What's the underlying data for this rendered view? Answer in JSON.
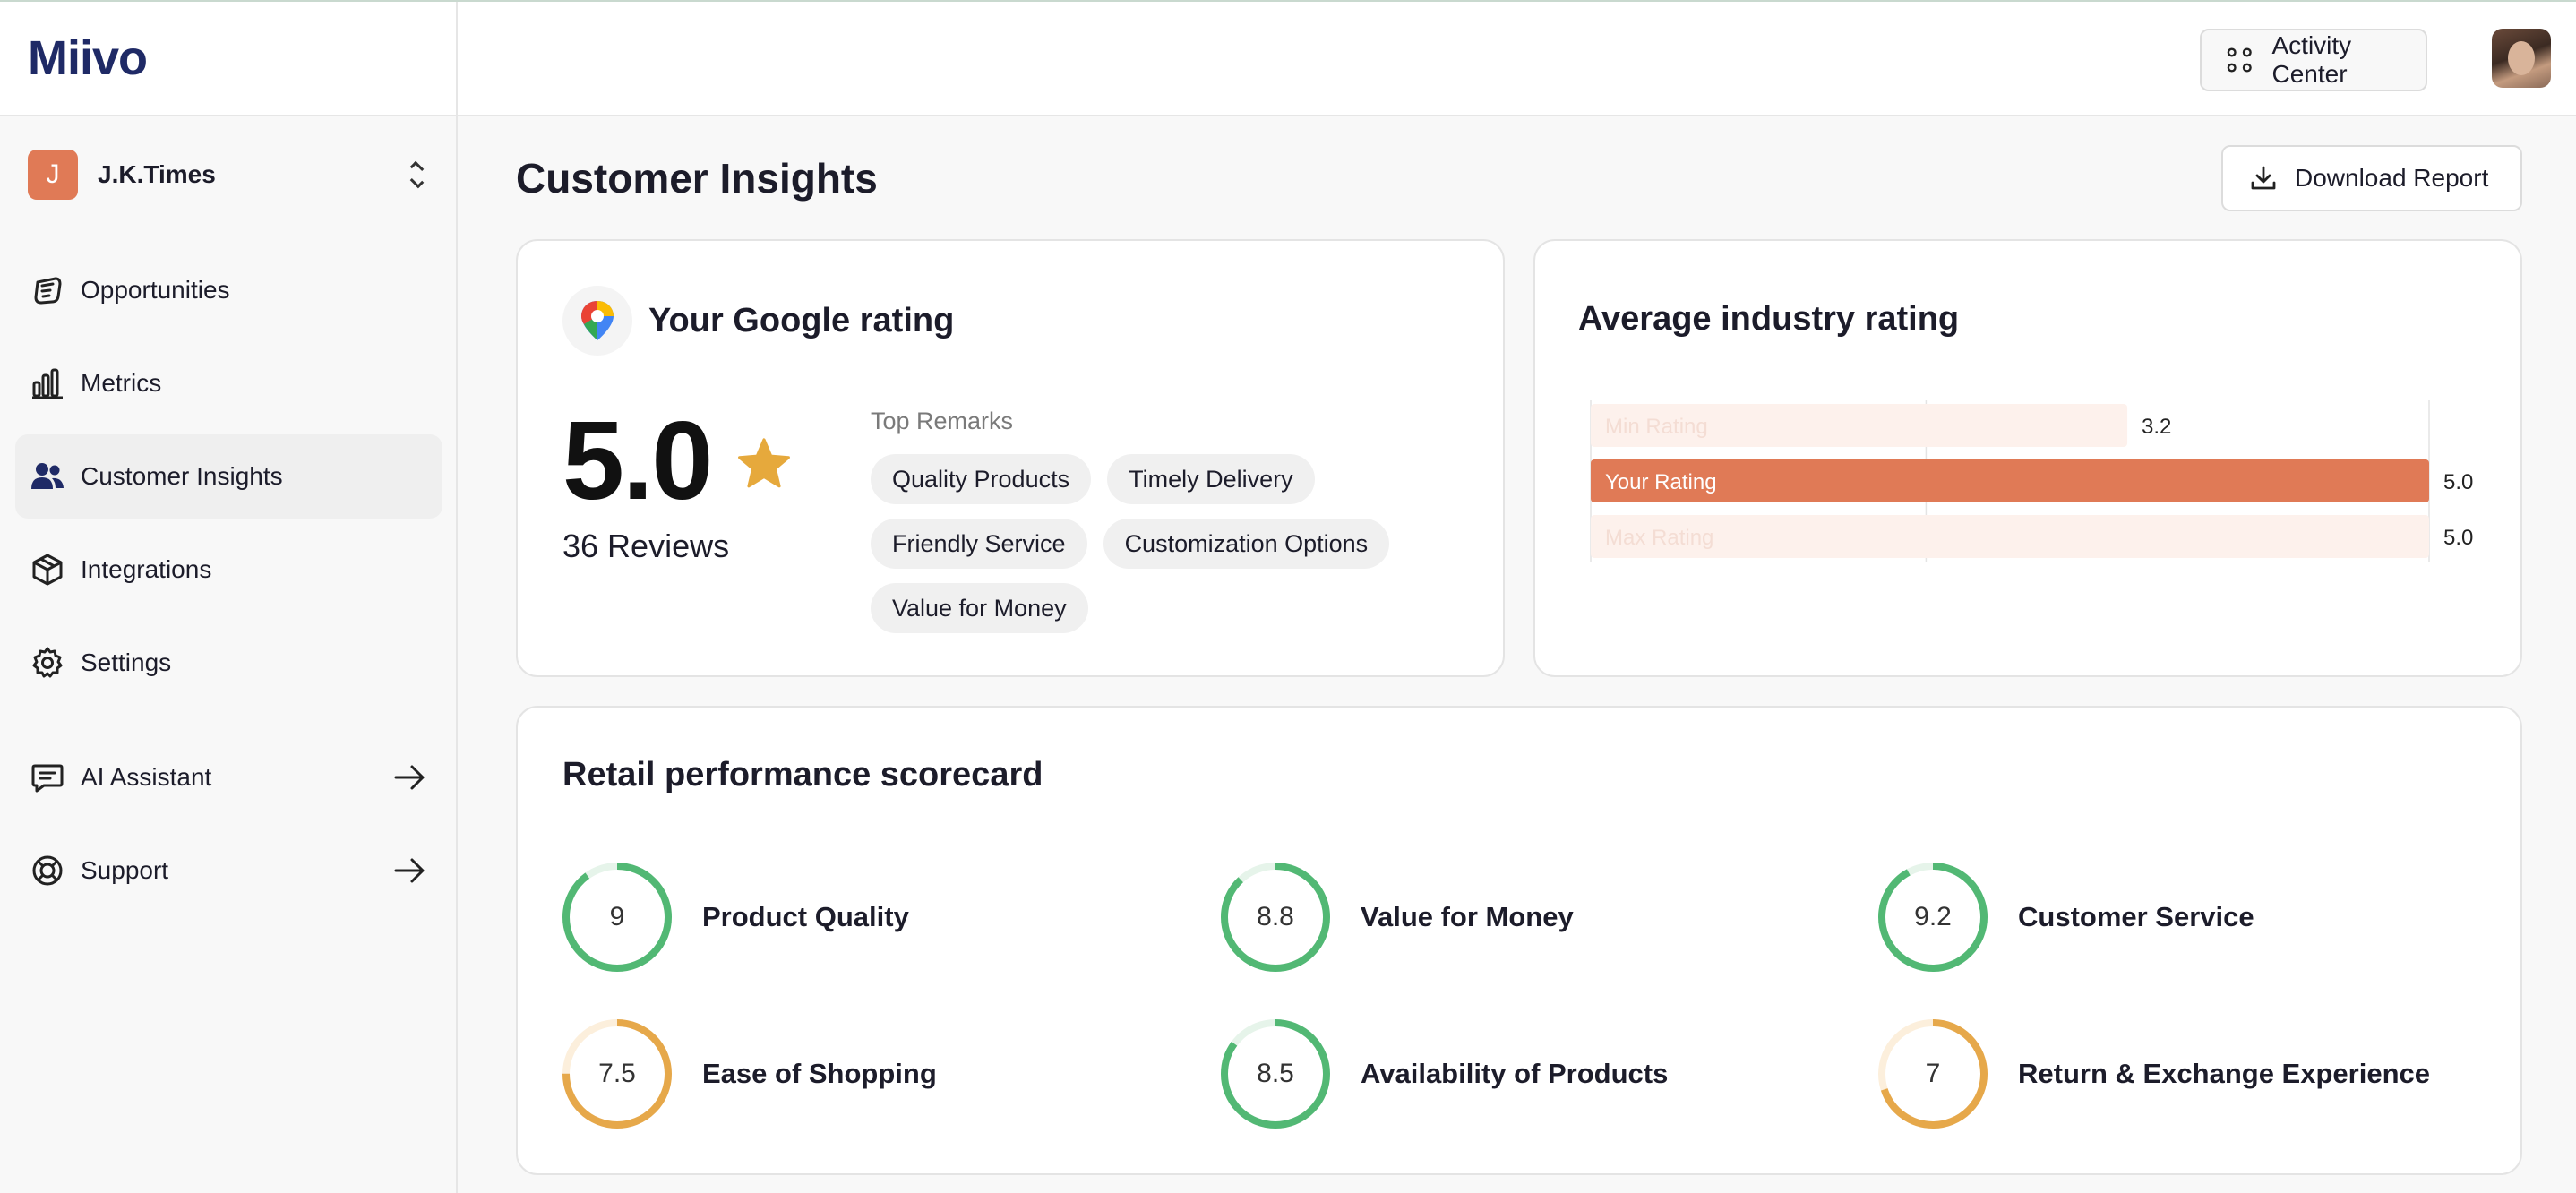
{
  "app": {
    "logo_text": "Miivo"
  },
  "workspace": {
    "initial": "J",
    "name": "J.K.Times"
  },
  "sidebar": {
    "items": [
      {
        "label": "Opportunities",
        "icon": "opportunities-icon"
      },
      {
        "label": "Metrics",
        "icon": "metrics-bar-icon"
      },
      {
        "label": "Customer Insights",
        "icon": "users-icon",
        "active": true
      },
      {
        "label": "Integrations",
        "icon": "package-icon"
      },
      {
        "label": "Settings",
        "icon": "gear-icon"
      }
    ],
    "secondary": [
      {
        "label": "AI Assistant",
        "icon": "chat-icon"
      },
      {
        "label": "Support",
        "icon": "lifebuoy-icon"
      }
    ]
  },
  "header": {
    "activity_label": "Activity Center"
  },
  "page": {
    "title": "Customer Insights",
    "download_label": "Download Report"
  },
  "google": {
    "title": "Your Google rating",
    "rating": "5.0",
    "reviews": "36 Reviews",
    "remarks_title": "Top Remarks",
    "remarks": [
      "Quality Products",
      "Timely Delivery",
      "Friendly Service",
      "Customization Options",
      "Value for Money"
    ]
  },
  "industry": {
    "title": "Average industry rating"
  },
  "chart_data": {
    "type": "bar",
    "orientation": "horizontal",
    "title": "Average industry rating",
    "categories": [
      "Min Rating",
      "Your Rating",
      "Max Rating"
    ],
    "values": [
      3.2,
      5.0,
      5.0
    ],
    "value_labels": [
      "3.2",
      "5.0",
      "5.0"
    ],
    "xlim": [
      0,
      5
    ],
    "colors": {
      "highlight": "#e07a56",
      "muted": "#fdf1ec",
      "grid": "#e4e4e4"
    },
    "grid": true,
    "legend": "none"
  },
  "scorecard": {
    "title": "Retail performance scorecard",
    "metrics": [
      {
        "label": "Product Quality",
        "value": "9",
        "score": 9,
        "color": "#52b874"
      },
      {
        "label": "Value for Money",
        "value": "8.8",
        "score": 8.8,
        "color": "#52b874"
      },
      {
        "label": "Customer Service",
        "value": "9.2",
        "score": 9.2,
        "color": "#52b874"
      },
      {
        "label": "Ease of Shopping",
        "value": "7.5",
        "score": 7.5,
        "color": "#e6a84a"
      },
      {
        "label": "Availability of Products",
        "value": "8.5",
        "score": 8.5,
        "color": "#52b874"
      },
      {
        "label": "Return & Exchange Experience",
        "value": "7",
        "score": 7,
        "color": "#e6a84a"
      }
    ],
    "max_score": 10
  }
}
